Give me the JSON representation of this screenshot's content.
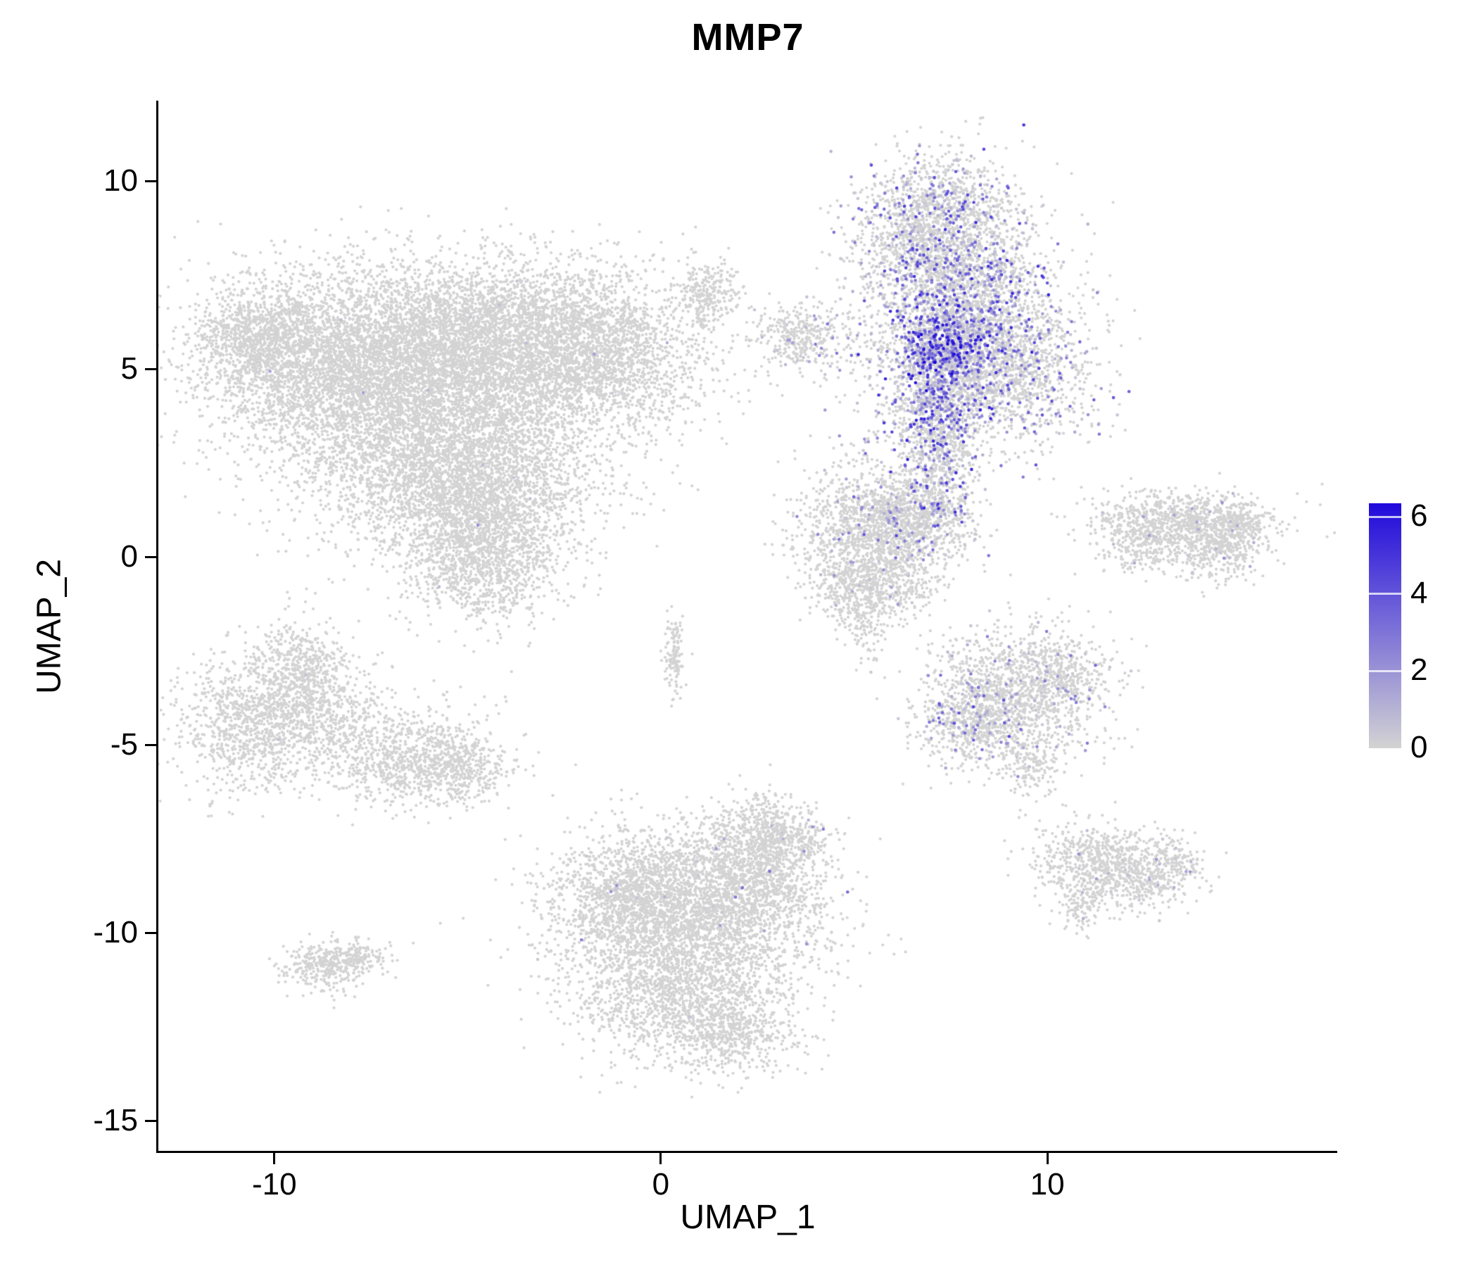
{
  "chart_data": {
    "type": "scatter",
    "title": "MMP7",
    "xlabel": "UMAP_1",
    "ylabel": "UMAP_2",
    "xlim": [
      -13,
      17.5
    ],
    "ylim": [
      -15.8,
      12.1
    ],
    "x_ticks": [
      -10,
      0,
      10
    ],
    "y_ticks": [
      -15,
      -10,
      -5,
      0,
      5,
      10
    ],
    "grid": false,
    "background": "#ffffff",
    "axis_color": "#000000",
    "point_color_low": "#d3d3d3",
    "point_color_high": "#1500dc",
    "colorbar": {
      "position": "right",
      "ticks": [
        6,
        4,
        2,
        0
      ],
      "vmin": 0,
      "vmax": 6.35,
      "low": "#d3d3d3",
      "high": "#2009dc"
    },
    "clusters": [
      {
        "name": "left-large-blob",
        "blobs": [
          [
            -8.6,
            5.2,
            1.7,
            1.2,
            3200,
            0.001,
            1.5
          ],
          [
            -10.6,
            5.9,
            0.7,
            0.6,
            600,
            0,
            0
          ],
          [
            -4.8,
            5.9,
            2.0,
            1.0,
            3500,
            0.001,
            1.5
          ],
          [
            -1.8,
            5.4,
            1.5,
            1.1,
            2200,
            0.002,
            1.5
          ],
          [
            -5.8,
            3.4,
            2.1,
            1.3,
            3500,
            0.001,
            1.5
          ],
          [
            -4.9,
            1.6,
            1.5,
            1.1,
            2200,
            0.002,
            2
          ],
          [
            -4.6,
            -0.2,
            0.9,
            0.8,
            900,
            0.002,
            2
          ],
          [
            1.2,
            7.0,
            0.45,
            0.45,
            260,
            0,
            0
          ]
        ]
      },
      {
        "name": "top-right-expressing",
        "blobs": [
          [
            7.2,
            8.8,
            1.05,
            0.95,
            1600,
            0.18,
            4
          ],
          [
            7.8,
            6.6,
            1.25,
            1.1,
            2000,
            0.3,
            5
          ],
          [
            8.9,
            4.9,
            1.15,
            0.95,
            1300,
            0.2,
            4
          ],
          [
            7.3,
            5.5,
            0.55,
            0.6,
            700,
            0.65,
            6
          ],
          [
            7.1,
            3.9,
            0.6,
            0.8,
            600,
            0.35,
            5
          ],
          [
            7.3,
            2.4,
            0.45,
            0.9,
            420,
            0.3,
            5
          ],
          [
            4.2,
            5.8,
            1.1,
            0.6,
            200,
            0.1,
            3
          ],
          [
            3.5,
            5.9,
            0.45,
            0.35,
            220,
            0.05,
            2
          ],
          [
            6.0,
            2.9,
            0.9,
            0.8,
            150,
            0.15,
            3
          ]
        ]
      },
      {
        "name": "mid-upper-right",
        "blobs": [
          [
            5.4,
            0.7,
            1.0,
            0.75,
            1100,
            0.03,
            3
          ],
          [
            6.6,
            1.1,
            0.75,
            0.6,
            650,
            0.15,
            4
          ],
          [
            5.8,
            -0.6,
            0.7,
            0.55,
            450,
            0.02,
            2
          ],
          [
            4.7,
            -0.9,
            0.4,
            0.4,
            160,
            0.02,
            2
          ],
          [
            5.3,
            -1.8,
            0.3,
            0.45,
            120,
            0,
            0
          ]
        ]
      },
      {
        "name": "right-crescent",
        "blobs": [
          [
            13.4,
            1.0,
            1.2,
            0.4,
            700,
            0.02,
            2
          ],
          [
            14.4,
            0.3,
            0.55,
            0.5,
            420,
            0.03,
            2
          ],
          [
            12.6,
            0.4,
            0.6,
            0.45,
            300,
            0.02,
            2
          ],
          [
            15.0,
            0.9,
            0.4,
            0.3,
            150,
            0.02,
            2
          ]
        ]
      },
      {
        "name": "center-sliver",
        "blobs": [
          [
            0.35,
            -2.55,
            0.13,
            0.5,
            130,
            0,
            0
          ]
        ]
      },
      {
        "name": "mid-right",
        "blobs": [
          [
            9.1,
            -3.7,
            1.15,
            0.95,
            1300,
            0.08,
            3
          ],
          [
            8.1,
            -4.4,
            0.65,
            0.55,
            420,
            0.22,
            4
          ],
          [
            10.3,
            -3.1,
            0.6,
            0.5,
            280,
            0.04,
            2
          ],
          [
            9.6,
            -5.5,
            0.3,
            0.55,
            140,
            0.02,
            2
          ]
        ]
      },
      {
        "name": "left-mid-comma",
        "blobs": [
          [
            -10.4,
            -4.4,
            1.0,
            0.95,
            1100,
            0.001,
            1
          ],
          [
            -9.4,
            -3.1,
            0.55,
            0.75,
            450,
            0.002,
            1
          ],
          [
            -8.5,
            -4.1,
            0.8,
            0.8,
            420,
            0.002,
            1
          ]
        ]
      },
      {
        "name": "left-mid-lower",
        "blobs": [
          [
            -6.4,
            -5.3,
            1.05,
            0.65,
            850,
            0.001,
            1
          ],
          [
            -5.0,
            -5.7,
            0.55,
            0.45,
            260,
            0,
            0
          ]
        ]
      },
      {
        "name": "bottom-center-large",
        "blobs": [
          [
            0.8,
            -9.6,
            1.7,
            1.0,
            2400,
            0.004,
            3
          ],
          [
            2.2,
            -8.3,
            1.0,
            0.8,
            1100,
            0.006,
            3
          ],
          [
            -0.9,
            -8.9,
            0.9,
            0.8,
            900,
            0.004,
            2
          ],
          [
            0.5,
            -11.6,
            1.4,
            0.9,
            1400,
            0.002,
            2
          ],
          [
            2.7,
            -7.2,
            0.4,
            0.5,
            280,
            0.01,
            3
          ],
          [
            1.9,
            -12.7,
            0.8,
            0.5,
            450,
            0,
            0
          ],
          [
            3.7,
            -7.6,
            0.3,
            0.35,
            120,
            0.05,
            3
          ]
        ]
      },
      {
        "name": "bottom-left-small",
        "blobs": [
          [
            -8.7,
            -10.9,
            0.55,
            0.32,
            300,
            0,
            0
          ],
          [
            -7.8,
            -10.6,
            0.4,
            0.18,
            130,
            0,
            0
          ]
        ]
      },
      {
        "name": "bottom-right-wing",
        "blobs": [
          [
            11.3,
            -8.1,
            0.85,
            0.5,
            600,
            0.03,
            2
          ],
          [
            12.5,
            -8.6,
            0.75,
            0.4,
            340,
            0.04,
            2
          ],
          [
            10.9,
            -9.3,
            0.3,
            0.35,
            110,
            0.02,
            2
          ],
          [
            13.3,
            -8.0,
            0.35,
            0.25,
            90,
            0.02,
            2
          ]
        ]
      }
    ]
  }
}
